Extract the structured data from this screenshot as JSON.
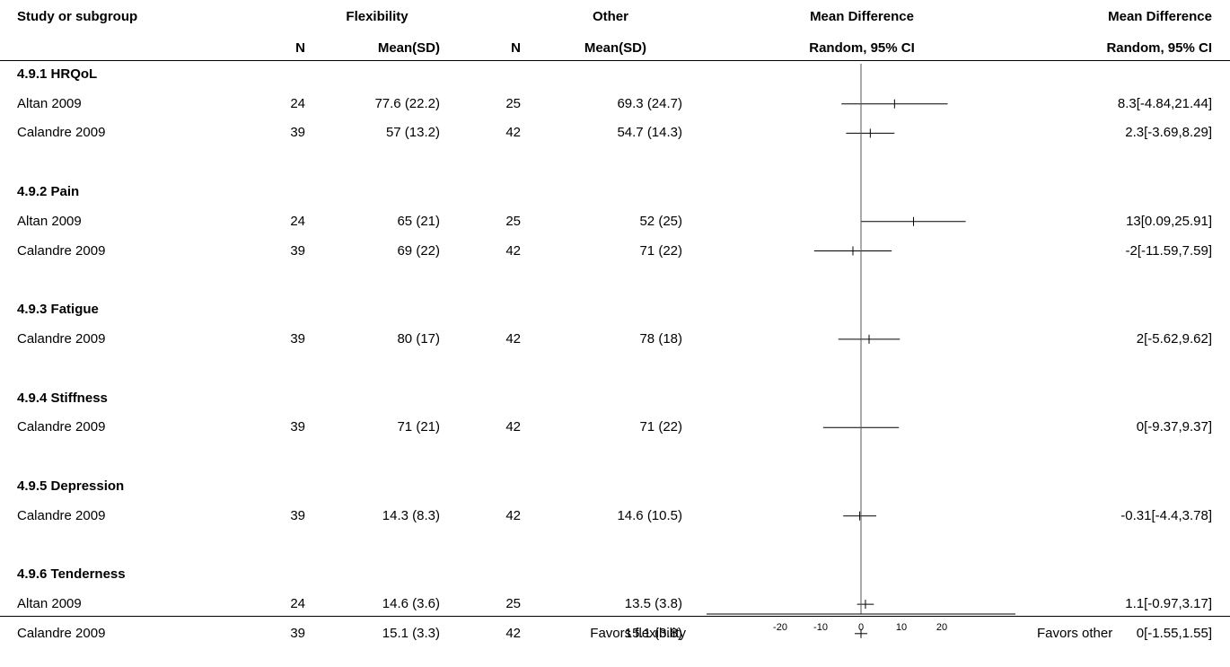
{
  "header": {
    "study_col": "Study or subgroup",
    "group1": "Flexibility",
    "group2": "Other",
    "n": "N",
    "mean_sd": "Mean(SD)",
    "md": "Mean Difference",
    "method": "Random, 95% CI"
  },
  "footer": {
    "favors_left": "Favors flexibility",
    "favors_right": "Favors other"
  },
  "chart_data": {
    "type": "forest",
    "xlim": [
      -20,
      20
    ],
    "x_ticks": [
      -20,
      -10,
      0,
      10,
      20
    ],
    "x_tick_labels": [
      "-20",
      "-10",
      "0",
      "10",
      "20"
    ],
    "subgroups": [
      {
        "label": "4.9.1 HRQoL",
        "studies": [
          {
            "study": "Altan 2009",
            "n1": "24",
            "msd1": "77.6 (22.2)",
            "n2": "25",
            "msd2": "69.3 (24.7)",
            "md": 8.3,
            "lo": -4.84,
            "hi": 21.44,
            "ci_text": "8.3[-4.84,21.44]"
          },
          {
            "study": "Calandre 2009",
            "n1": "39",
            "msd1": "57 (13.2)",
            "n2": "42",
            "msd2": "54.7 (14.3)",
            "md": 2.3,
            "lo": -3.69,
            "hi": 8.29,
            "ci_text": "2.3[-3.69,8.29]"
          }
        ]
      },
      {
        "label": "4.9.2 Pain",
        "studies": [
          {
            "study": "Altan 2009",
            "n1": "24",
            "msd1": "65 (21)",
            "n2": "25",
            "msd2": "52 (25)",
            "md": 13,
            "lo": 0.09,
            "hi": 25.91,
            "ci_text": "13[0.09,25.91]"
          },
          {
            "study": "Calandre 2009",
            "n1": "39",
            "msd1": "69 (22)",
            "n2": "42",
            "msd2": "71 (22)",
            "md": -2,
            "lo": -11.59,
            "hi": 7.59,
            "ci_text": "-2[-11.59,7.59]"
          }
        ]
      },
      {
        "label": "4.9.3 Fatigue",
        "studies": [
          {
            "study": "Calandre 2009",
            "n1": "39",
            "msd1": "80 (17)",
            "n2": "42",
            "msd2": "78 (18)",
            "md": 2,
            "lo": -5.62,
            "hi": 9.62,
            "ci_text": "2[-5.62,9.62]"
          }
        ]
      },
      {
        "label": "4.9.4 Stiffness",
        "studies": [
          {
            "study": "Calandre 2009",
            "n1": "39",
            "msd1": "71 (21)",
            "n2": "42",
            "msd2": "71 (22)",
            "md": 0,
            "lo": -9.37,
            "hi": 9.37,
            "ci_text": "0[-9.37,9.37]"
          }
        ]
      },
      {
        "label": "4.9.5 Depression",
        "studies": [
          {
            "study": "Calandre 2009",
            "n1": "39",
            "msd1": "14.3 (8.3)",
            "n2": "42",
            "msd2": "14.6 (10.5)",
            "md": -0.31,
            "lo": -4.4,
            "hi": 3.78,
            "ci_text": "-0.31[-4.4,3.78]"
          }
        ]
      },
      {
        "label": "4.9.6 Tenderness",
        "studies": [
          {
            "study": "Altan 2009",
            "n1": "24",
            "msd1": "14.6 (3.6)",
            "n2": "25",
            "msd2": "13.5 (3.8)",
            "md": 1.1,
            "lo": -0.97,
            "hi": 3.17,
            "ci_text": "1.1[-0.97,3.17]"
          },
          {
            "study": "Calandre 2009",
            "n1": "39",
            "msd1": "15.1 (3.3)",
            "n2": "42",
            "msd2": "15.1 (3.8)",
            "md": 0,
            "lo": -1.55,
            "hi": 1.55,
            "ci_text": "0[-1.55,1.55]"
          }
        ]
      }
    ]
  }
}
